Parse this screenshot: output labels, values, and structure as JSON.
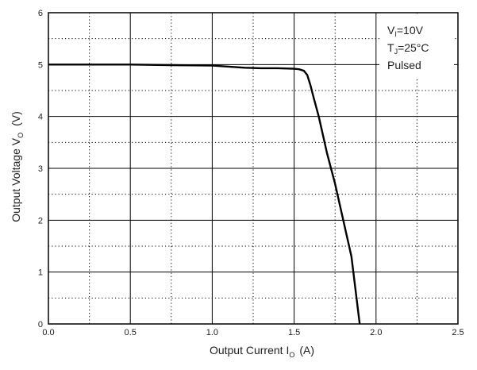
{
  "chart_data": {
    "type": "line",
    "title": "",
    "xlabel": {
      "text": "Output Current  I",
      "sub": "O",
      "unit": "(A)"
    },
    "ylabel": {
      "text": "Output Voltage   V",
      "sub": "O",
      "unit": "(V)"
    },
    "xlim": [
      0,
      2.5
    ],
    "ylim": [
      0,
      6
    ],
    "x_ticks": [
      "0.0",
      "0.5",
      "1.0",
      "1.5",
      "2.0",
      "2.5"
    ],
    "y_ticks": [
      "0",
      "1",
      "2",
      "3",
      "4",
      "5",
      "6"
    ],
    "grid": true,
    "legend": "none",
    "annotations": [
      {
        "main": "V",
        "sub": "I",
        "rest": "=10V"
      },
      {
        "main": "T",
        "sub": "J",
        "rest": "=25°C"
      },
      {
        "main": "Pulsed",
        "sub": "",
        "rest": ""
      }
    ],
    "series": [
      {
        "color": "#000000",
        "points": [
          [
            0.0,
            5.0
          ],
          [
            0.25,
            5.0
          ],
          [
            0.5,
            5.0
          ],
          [
            0.75,
            4.99
          ],
          [
            1.0,
            4.98
          ],
          [
            1.1,
            4.96
          ],
          [
            1.2,
            4.94
          ],
          [
            1.3,
            4.93
          ],
          [
            1.4,
            4.93
          ],
          [
            1.5,
            4.92
          ],
          [
            1.53,
            4.91
          ],
          [
            1.56,
            4.88
          ],
          [
            1.58,
            4.8
          ],
          [
            1.6,
            4.6
          ],
          [
            1.62,
            4.35
          ],
          [
            1.65,
            4.0
          ],
          [
            1.7,
            3.3
          ],
          [
            1.75,
            2.7
          ],
          [
            1.8,
            2.0
          ],
          [
            1.85,
            1.3
          ],
          [
            1.9,
            0.0
          ]
        ]
      }
    ]
  }
}
